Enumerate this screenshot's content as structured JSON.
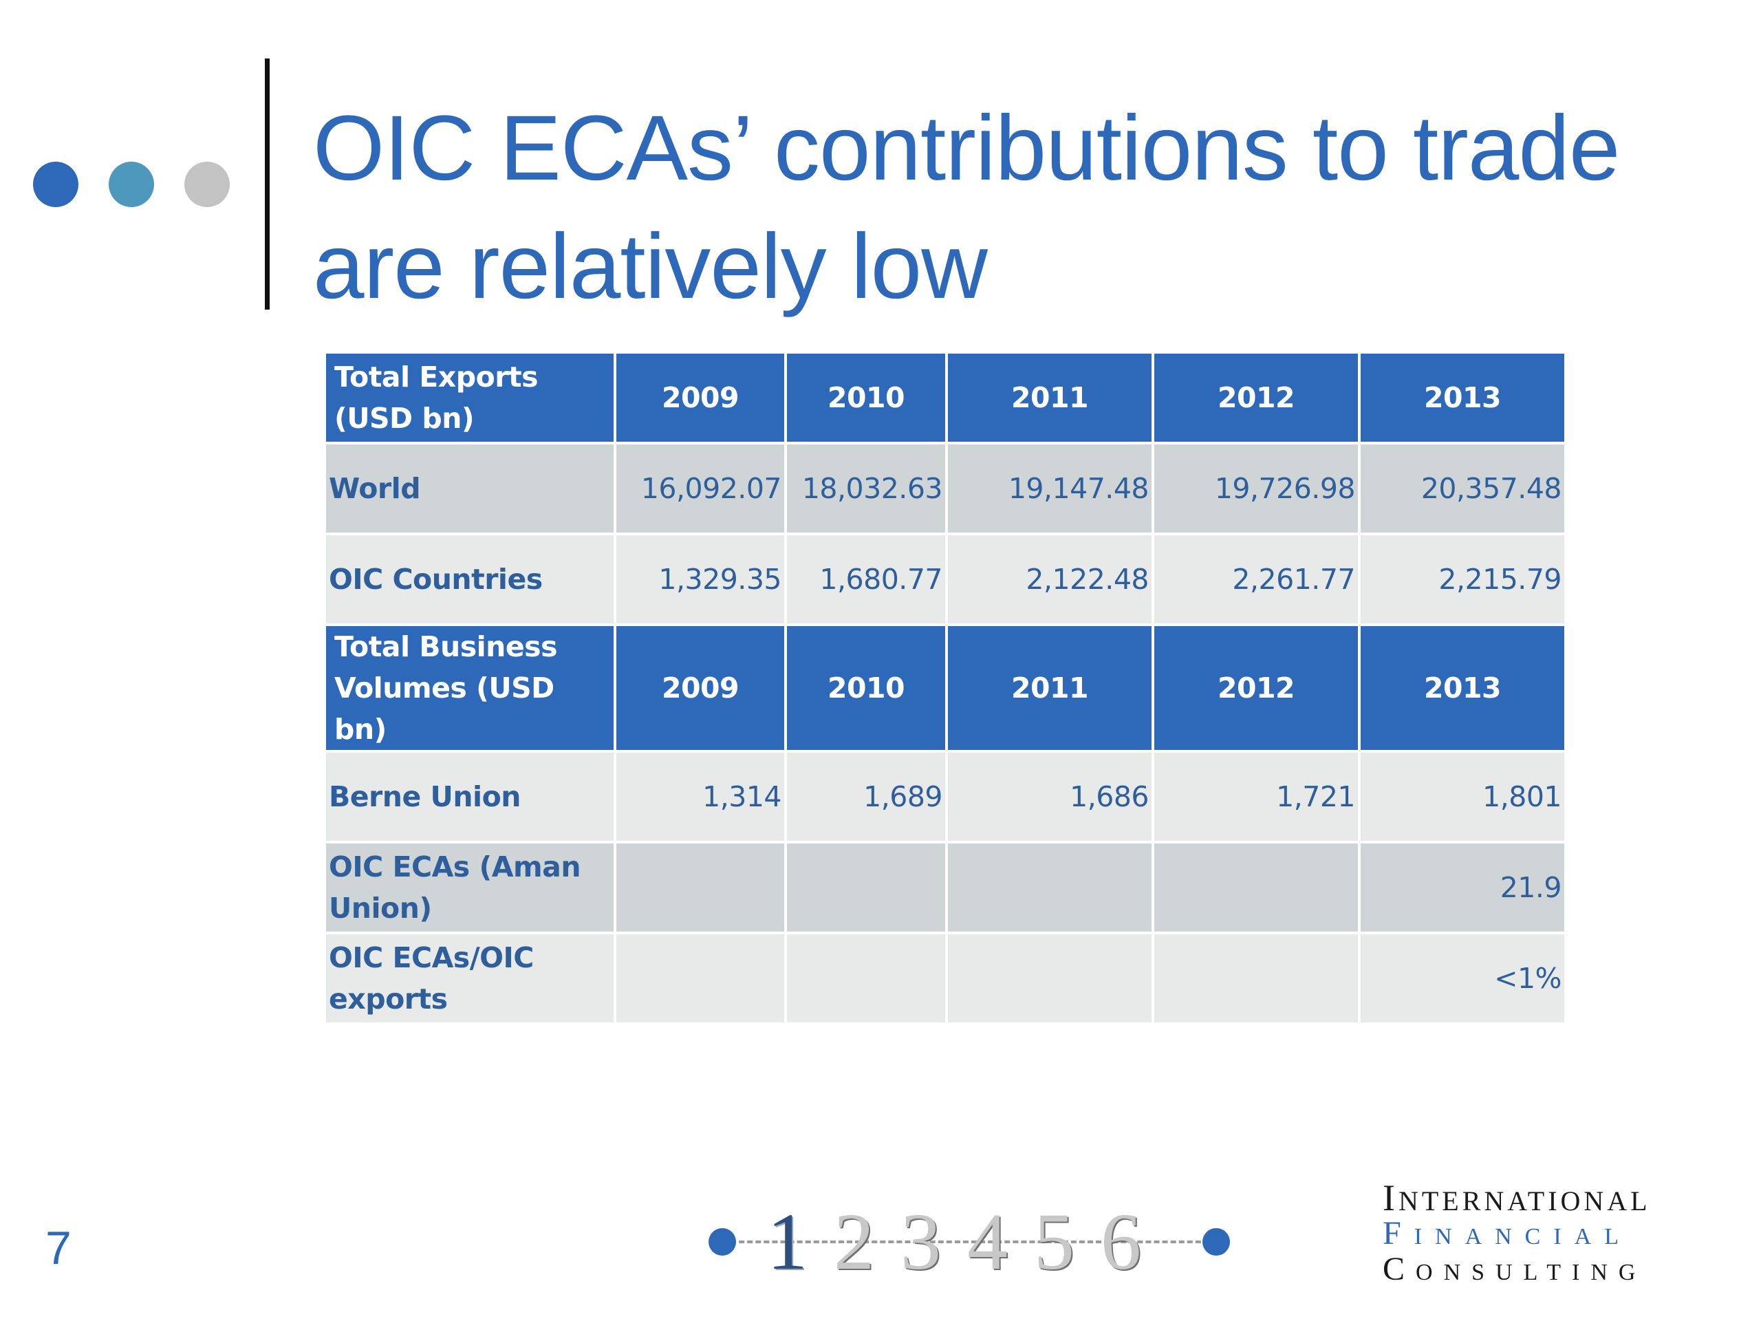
{
  "slide": {
    "title": "OIC ECAs’ contributions to trade are relatively low",
    "page_number": "7"
  },
  "decor": {
    "dot_colors": [
      "#2e69b9",
      "#4e98bd",
      "#c3c3c3"
    ],
    "accent": "#2e69b9"
  },
  "table": {
    "sections": [
      {
        "header": [
          "Total Exports (USD bn)",
          "2009",
          "2010",
          "2011",
          "2012",
          "2013"
        ],
        "rows": [
          [
            "World",
            "16,092.07",
            "18,032.63",
            "19,147.48",
            "19,726.98",
            "20,357.48"
          ],
          [
            "OIC Countries",
            "1,329.35",
            "1,680.77",
            "2,122.48",
            "2,261.77",
            "2,215.79"
          ]
        ]
      },
      {
        "header": [
          "Total Business Volumes (USD bn)",
          "2009",
          "2010",
          "2011",
          "2012",
          "2013"
        ],
        "rows": [
          [
            "Berne Union",
            "1,314",
            "1,689",
            "1,686",
            "1,721",
            "1,801"
          ],
          [
            "OIC ECAs (Aman Union)",
            "",
            "",
            "",
            "",
            "21.9"
          ],
          [
            "OIC ECAs/OIC exports",
            "",
            "",
            "",
            "",
            "<1%"
          ]
        ]
      }
    ]
  },
  "nav": {
    "numbers": [
      "1",
      "2",
      "3",
      "4",
      "5",
      "6"
    ],
    "active": "1"
  },
  "logo": {
    "line1": "International",
    "line2": "Financial",
    "line3": "Consulting"
  }
}
